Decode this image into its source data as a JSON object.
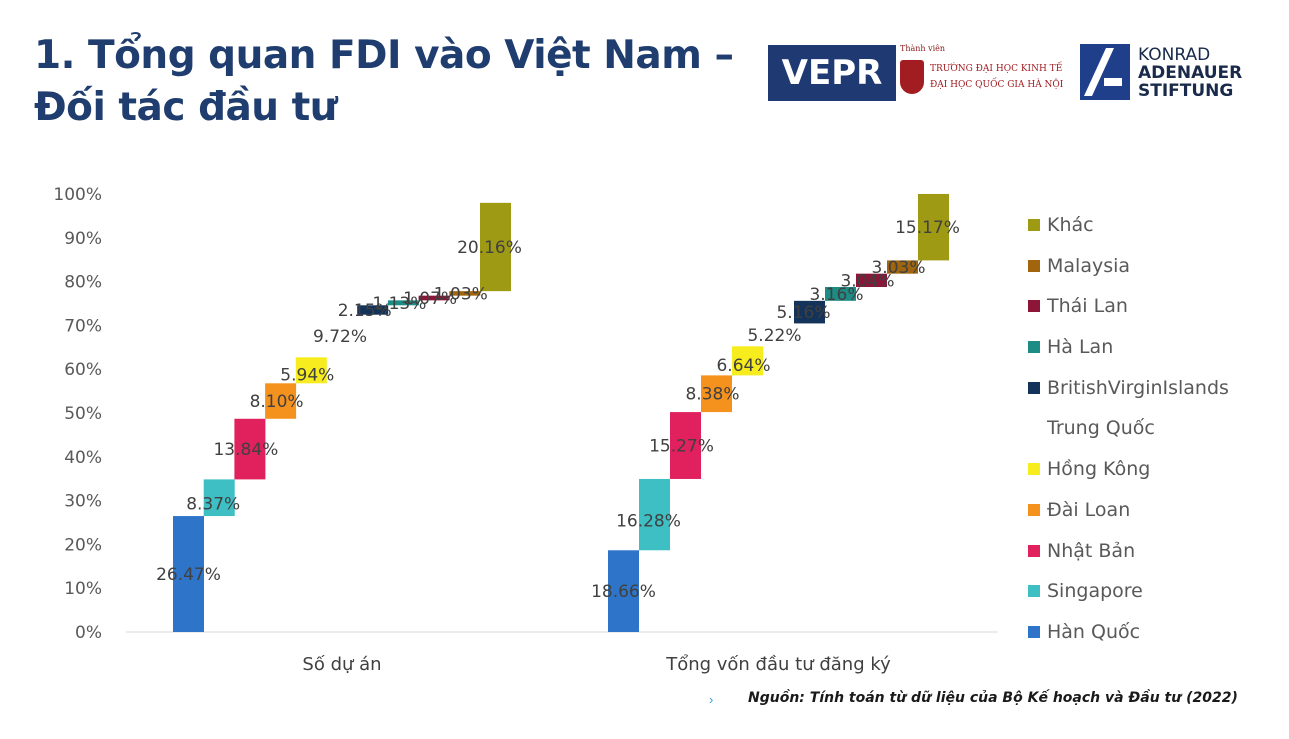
{
  "slide": {
    "title_line1": "1. Tổng quan FDI vào Việt Nam –",
    "title_line2": "Đối tác đầu tư",
    "source": "Nguồn: Tính toán từ dữ liệu của Bộ Kế hoạch và Đầu tư (2022)"
  },
  "logos": {
    "vepr": "VEPR",
    "ueb_tag": "Thành viên",
    "ueb_line1": "TRƯỜNG ĐẠI HỌC KINH TẾ",
    "ueb_line2": "ĐẠI HỌC QUỐC GIA HÀ NỘI",
    "kas_line1": "KONRAD",
    "kas_line2": "ADENAUER",
    "kas_line3": "STIFTUNG"
  },
  "chart_data": {
    "type": "bar",
    "stacked": true,
    "style": "waterfall",
    "categories": [
      "Số dự án",
      "Tổng vốn đầu tư đăng ký"
    ],
    "ylim": [
      0,
      100
    ],
    "yticks": [
      "0%",
      "10%",
      "20%",
      "30%",
      "40%",
      "50%",
      "60%",
      "70%",
      "80%",
      "90%",
      "100%"
    ],
    "grid": false,
    "legend_position": "right",
    "series": [
      {
        "name": "Hàn Quốc",
        "color": "#2e75c9",
        "values": [
          26.47,
          18.66
        ],
        "labels": [
          "26.47%",
          "18.66%"
        ]
      },
      {
        "name": "Singapore",
        "color": "#3dbfc4",
        "values": [
          8.37,
          16.28
        ],
        "labels": [
          "8.37%",
          "16.28%"
        ]
      },
      {
        "name": "Nhật Bản",
        "color": "#e0215e",
        "values": [
          13.84,
          15.27
        ],
        "labels": [
          "13.84%",
          "15.27%"
        ]
      },
      {
        "name": "Đài Loan",
        "color": "#f5921e",
        "values": [
          8.1,
          8.38
        ],
        "labels": [
          "8.10%",
          "8.38%"
        ]
      },
      {
        "name": "Hồng Kông",
        "color": "#f7ec1d",
        "values": [
          5.94,
          6.64
        ],
        "labels": [
          "5.94%",
          "6.64%"
        ]
      },
      {
        "name": "Trung Quốc",
        "color": "#ffffff",
        "values": [
          9.72,
          5.22
        ],
        "labels": [
          "9.72%",
          "5.22%"
        ]
      },
      {
        "name": "BritishVirginIslands",
        "color": "#14335a",
        "values": [
          2.15,
          5.16
        ],
        "labels": [
          "2.15%",
          "5.16%"
        ]
      },
      {
        "name": "Hà Lan",
        "color": "#1d8c85",
        "values": [
          1.13,
          3.16
        ],
        "labels": [
          "1.13%",
          "3.16%"
        ]
      },
      {
        "name": "Thái Lan",
        "color": "#8c1538",
        "values": [
          1.07,
          3.04
        ],
        "labels": [
          "1.07%",
          "3.04%"
        ]
      },
      {
        "name": "Malaysia",
        "color": "#a0650d",
        "values": [
          1.03,
          3.03
        ],
        "labels": [
          "1.03%",
          "3.03%"
        ]
      },
      {
        "name": "Khác",
        "color": "#9e9a13",
        "values": [
          20.16,
          15.17
        ],
        "labels": [
          "20.16%",
          "15.17%"
        ]
      }
    ],
    "legend_order": [
      "Khác",
      "Malaysia",
      "Thái Lan",
      "Hà Lan",
      "BritishVirginIslands",
      "Trung Quốc",
      "Hồng Kông",
      "Đài Loan",
      "Nhật Bản",
      "Singapore",
      "Hàn Quốc"
    ]
  }
}
